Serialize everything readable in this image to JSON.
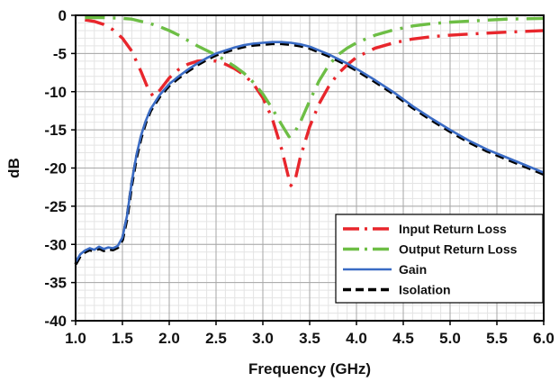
{
  "chart_data": {
    "type": "line",
    "title": "",
    "xlabel": "Frequency (GHz)",
    "ylabel": "dB",
    "xlim": [
      1.0,
      6.0
    ],
    "ylim": [
      -40,
      0
    ],
    "x_ticks": [
      1.0,
      1.5,
      2.0,
      2.5,
      3.0,
      3.5,
      4.0,
      4.5,
      5.0,
      5.5,
      6.0
    ],
    "x_tick_labels": [
      "1.0",
      "1.5",
      "2.0",
      "2.5",
      "3.0",
      "3.5",
      "4.0",
      "4.5",
      "5.0",
      "5.5",
      "6.0"
    ],
    "y_ticks": [
      0,
      -5,
      -10,
      -15,
      -20,
      -25,
      -30,
      -35,
      -40
    ],
    "y_tick_labels": [
      "0",
      "-5",
      "-10",
      "-15",
      "-20",
      "-25",
      "-30",
      "-35",
      "-40"
    ],
    "x_minor_step": 0.1,
    "y_minor_step": 1,
    "grid": true,
    "legend_position": "bottom-right",
    "series": [
      {
        "name": "Input Return Loss",
        "color": "#e8262c",
        "style": "long-dash-dot",
        "points": [
          [
            1.1,
            -0.6
          ],
          [
            1.2,
            -0.8
          ],
          [
            1.3,
            -1.2
          ],
          [
            1.4,
            -1.9
          ],
          [
            1.5,
            -3.0
          ],
          [
            1.6,
            -4.7
          ],
          [
            1.7,
            -7.4
          ],
          [
            1.78,
            -9.8
          ],
          [
            1.83,
            -10.6
          ],
          [
            1.9,
            -9.8
          ],
          [
            2.0,
            -8.2
          ],
          [
            2.1,
            -7.1
          ],
          [
            2.2,
            -6.4
          ],
          [
            2.3,
            -6.0
          ],
          [
            2.4,
            -5.9
          ],
          [
            2.5,
            -6.0
          ],
          [
            2.6,
            -6.4
          ],
          [
            2.7,
            -7.0
          ],
          [
            2.8,
            -7.8
          ],
          [
            2.9,
            -9.0
          ],
          [
            3.0,
            -10.8
          ],
          [
            3.1,
            -13.5
          ],
          [
            3.2,
            -17.5
          ],
          [
            3.27,
            -21.0
          ],
          [
            3.3,
            -22.3
          ],
          [
            3.35,
            -21.3
          ],
          [
            3.4,
            -18.6
          ],
          [
            3.5,
            -14.6
          ],
          [
            3.6,
            -11.6
          ],
          [
            3.7,
            -9.4
          ],
          [
            3.8,
            -7.7
          ],
          [
            3.9,
            -6.5
          ],
          [
            4.0,
            -5.5
          ],
          [
            4.2,
            -4.3
          ],
          [
            4.4,
            -3.6
          ],
          [
            4.6,
            -3.1
          ],
          [
            4.8,
            -2.8
          ],
          [
            5.0,
            -2.6
          ],
          [
            5.3,
            -2.4
          ],
          [
            5.6,
            -2.2
          ],
          [
            6.0,
            -2.0
          ]
        ]
      },
      {
        "name": "Output Return Loss",
        "color": "#6dbe45",
        "style": "long-dash-dot",
        "points": [
          [
            1.1,
            -0.3
          ],
          [
            1.3,
            -0.3
          ],
          [
            1.5,
            -0.4
          ],
          [
            1.6,
            -0.5
          ],
          [
            1.7,
            -0.8
          ],
          [
            1.8,
            -1.1
          ],
          [
            1.9,
            -1.5
          ],
          [
            2.0,
            -2.0
          ],
          [
            2.1,
            -2.6
          ],
          [
            2.2,
            -3.3
          ],
          [
            2.3,
            -4.0
          ],
          [
            2.4,
            -4.6
          ],
          [
            2.5,
            -5.2
          ],
          [
            2.6,
            -5.9
          ],
          [
            2.7,
            -6.7
          ],
          [
            2.8,
            -7.6
          ],
          [
            2.9,
            -8.8
          ],
          [
            3.0,
            -10.3
          ],
          [
            3.1,
            -12.2
          ],
          [
            3.2,
            -14.3
          ],
          [
            3.28,
            -15.9
          ],
          [
            3.33,
            -15.5
          ],
          [
            3.4,
            -14.0
          ],
          [
            3.5,
            -11.2
          ],
          [
            3.6,
            -8.6
          ],
          [
            3.7,
            -6.6
          ],
          [
            3.8,
            -5.2
          ],
          [
            3.9,
            -4.3
          ],
          [
            4.0,
            -3.6
          ],
          [
            4.2,
            -2.6
          ],
          [
            4.4,
            -1.9
          ],
          [
            4.6,
            -1.4
          ],
          [
            4.8,
            -1.1
          ],
          [
            5.0,
            -0.9
          ],
          [
            5.3,
            -0.7
          ],
          [
            5.6,
            -0.5
          ],
          [
            6.0,
            -0.4
          ]
        ]
      },
      {
        "name": "Gain",
        "color": "#3a6bc4",
        "style": "solid",
        "points": [
          [
            1.0,
            -32.3
          ],
          [
            1.05,
            -31.3
          ],
          [
            1.1,
            -30.8
          ],
          [
            1.15,
            -30.5
          ],
          [
            1.2,
            -30.7
          ],
          [
            1.25,
            -30.3
          ],
          [
            1.3,
            -30.6
          ],
          [
            1.35,
            -30.4
          ],
          [
            1.4,
            -30.5
          ],
          [
            1.45,
            -30.2
          ],
          [
            1.5,
            -29.1
          ],
          [
            1.55,
            -26.2
          ],
          [
            1.6,
            -21.8
          ],
          [
            1.65,
            -18.3
          ],
          [
            1.7,
            -15.7
          ],
          [
            1.75,
            -13.8
          ],
          [
            1.8,
            -12.3
          ],
          [
            1.9,
            -10.4
          ],
          [
            2.0,
            -9.0
          ],
          [
            2.1,
            -8.0
          ],
          [
            2.2,
            -7.1
          ],
          [
            2.3,
            -6.3
          ],
          [
            2.4,
            -5.6
          ],
          [
            2.5,
            -5.0
          ],
          [
            2.6,
            -4.6
          ],
          [
            2.7,
            -4.2
          ],
          [
            2.8,
            -3.9
          ],
          [
            2.9,
            -3.7
          ],
          [
            3.0,
            -3.6
          ],
          [
            3.1,
            -3.5
          ],
          [
            3.2,
            -3.5
          ],
          [
            3.3,
            -3.6
          ],
          [
            3.4,
            -3.8
          ],
          [
            3.5,
            -4.1
          ],
          [
            3.6,
            -4.6
          ],
          [
            3.7,
            -5.1
          ],
          [
            3.8,
            -5.7
          ],
          [
            3.9,
            -6.3
          ],
          [
            4.0,
            -7.0
          ],
          [
            4.2,
            -8.5
          ],
          [
            4.4,
            -10.1
          ],
          [
            4.6,
            -11.9
          ],
          [
            4.8,
            -13.5
          ],
          [
            5.0,
            -15.0
          ],
          [
            5.2,
            -16.4
          ],
          [
            5.4,
            -17.6
          ],
          [
            5.6,
            -18.6
          ],
          [
            5.8,
            -19.6
          ],
          [
            6.0,
            -20.6
          ]
        ]
      },
      {
        "name": "Isolation",
        "color": "#000000",
        "style": "dash",
        "points": [
          [
            1.0,
            -32.6
          ],
          [
            1.05,
            -31.5
          ],
          [
            1.1,
            -31.0
          ],
          [
            1.15,
            -30.7
          ],
          [
            1.2,
            -30.9
          ],
          [
            1.25,
            -30.5
          ],
          [
            1.3,
            -30.8
          ],
          [
            1.35,
            -30.6
          ],
          [
            1.4,
            -30.7
          ],
          [
            1.45,
            -30.4
          ],
          [
            1.5,
            -29.4
          ],
          [
            1.55,
            -26.5
          ],
          [
            1.6,
            -22.1
          ],
          [
            1.65,
            -18.6
          ],
          [
            1.7,
            -16.0
          ],
          [
            1.75,
            -14.0
          ],
          [
            1.8,
            -12.5
          ],
          [
            1.9,
            -10.6
          ],
          [
            2.0,
            -9.2
          ],
          [
            2.1,
            -8.2
          ],
          [
            2.2,
            -7.3
          ],
          [
            2.3,
            -6.5
          ],
          [
            2.4,
            -5.8
          ],
          [
            2.5,
            -5.2
          ],
          [
            2.6,
            -4.8
          ],
          [
            2.7,
            -4.4
          ],
          [
            2.8,
            -4.1
          ],
          [
            2.9,
            -3.9
          ],
          [
            3.0,
            -3.8
          ],
          [
            3.1,
            -3.7
          ],
          [
            3.2,
            -3.7
          ],
          [
            3.3,
            -3.8
          ],
          [
            3.4,
            -4.0
          ],
          [
            3.5,
            -4.3
          ],
          [
            3.6,
            -4.8
          ],
          [
            3.7,
            -5.3
          ],
          [
            3.8,
            -5.9
          ],
          [
            3.9,
            -6.5
          ],
          [
            4.0,
            -7.2
          ],
          [
            4.2,
            -8.7
          ],
          [
            4.4,
            -10.3
          ],
          [
            4.6,
            -12.1
          ],
          [
            4.8,
            -13.7
          ],
          [
            5.0,
            -15.2
          ],
          [
            5.2,
            -16.6
          ],
          [
            5.4,
            -17.8
          ],
          [
            5.6,
            -18.8
          ],
          [
            5.8,
            -19.8
          ],
          [
            6.0,
            -20.8
          ]
        ]
      }
    ]
  }
}
